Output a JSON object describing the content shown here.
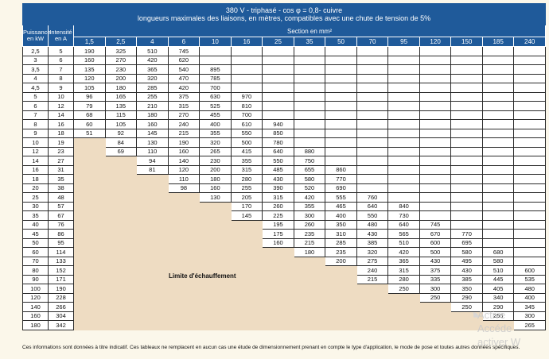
{
  "title_line1": "380 V - triphasé - cos φ  = 0,8- cuivre",
  "title_line2": "longueurs maximales des liaisons, en mètres, compatibles avec une chute de tension de 5%",
  "col_power": "Puissance en kW",
  "col_current": "Intensité en A",
  "col_section": "Section en mm²",
  "sections": [
    "1,5",
    "2,5",
    "4",
    "6",
    "10",
    "16",
    "25",
    "35",
    "50",
    "70",
    "95",
    "120",
    "150",
    "185",
    "240"
  ],
  "rows": [
    {
      "p": "2,5",
      "i": "5",
      "v": [
        "190",
        "325",
        "510",
        "745",
        "",
        "",
        "",
        "",
        "",
        "",
        "",
        "",
        "",
        "",
        ""
      ]
    },
    {
      "p": "3",
      "i": "6",
      "v": [
        "160",
        "270",
        "420",
        "620",
        "",
        "",
        "",
        "",
        "",
        "",
        "",
        "",
        "",
        "",
        ""
      ]
    },
    {
      "p": "3,5",
      "i": "7",
      "v": [
        "135",
        "230",
        "365",
        "540",
        "895",
        "",
        "",
        "",
        "",
        "",
        "",
        "",
        "",
        "",
        ""
      ]
    },
    {
      "p": "4",
      "i": "8",
      "v": [
        "120",
        "200",
        "320",
        "470",
        "785",
        "",
        "",
        "",
        "",
        "",
        "",
        "",
        "",
        "",
        ""
      ]
    },
    {
      "p": "4,5",
      "i": "9",
      "v": [
        "105",
        "180",
        "285",
        "420",
        "700",
        "",
        "",
        "",
        "",
        "",
        "",
        "",
        "",
        "",
        ""
      ]
    },
    {
      "p": "5",
      "i": "10",
      "v": [
        "96",
        "165",
        "255",
        "375",
        "630",
        "970",
        "",
        "",
        "",
        "",
        "",
        "",
        "",
        "",
        ""
      ]
    },
    {
      "p": "6",
      "i": "12",
      "v": [
        "79",
        "135",
        "210",
        "315",
        "525",
        "810",
        "",
        "",
        "",
        "",
        "",
        "",
        "",
        "",
        ""
      ]
    },
    {
      "p": "7",
      "i": "14",
      "v": [
        "68",
        "115",
        "180",
        "270",
        "455",
        "700",
        "",
        "",
        "",
        "",
        "",
        "",
        "",
        "",
        ""
      ]
    },
    {
      "p": "8",
      "i": "16",
      "v": [
        "60",
        "105",
        "160",
        "240",
        "400",
        "610",
        "940",
        "",
        "",
        "",
        "",
        "",
        "",
        "",
        ""
      ]
    },
    {
      "p": "9",
      "i": "18",
      "v": [
        "51",
        "92",
        "145",
        "215",
        "355",
        "550",
        "850",
        "",
        "",
        "",
        "",
        "",
        "",
        "",
        ""
      ]
    },
    {
      "p": "10",
      "i": "19",
      "v": [
        "",
        "84",
        "130",
        "190",
        "320",
        "500",
        "780",
        "",
        "",
        "",
        "",
        "",
        "",
        "",
        ""
      ]
    },
    {
      "p": "12",
      "i": "23",
      "v": [
        "",
        "69",
        "110",
        "160",
        "265",
        "415",
        "640",
        "880",
        "",
        "",
        "",
        "",
        "",
        "",
        ""
      ]
    },
    {
      "p": "14",
      "i": "27",
      "v": [
        "",
        "",
        "94",
        "140",
        "230",
        "355",
        "550",
        "750",
        "",
        "",
        "",
        "",
        "",
        "",
        ""
      ]
    },
    {
      "p": "16",
      "i": "31",
      "v": [
        "",
        "",
        "81",
        "120",
        "200",
        "315",
        "485",
        "655",
        "860",
        "",
        "",
        "",
        "",
        "",
        ""
      ]
    },
    {
      "p": "18",
      "i": "35",
      "v": [
        "",
        "",
        "",
        "110",
        "180",
        "280",
        "430",
        "580",
        "770",
        "",
        "",
        "",
        "",
        "",
        ""
      ]
    },
    {
      "p": "20",
      "i": "38",
      "v": [
        "",
        "",
        "",
        "98",
        "160",
        "255",
        "390",
        "520",
        "690",
        "",
        "",
        "",
        "",
        "",
        ""
      ]
    },
    {
      "p": "25",
      "i": "48",
      "v": [
        "",
        "",
        "",
        "",
        "130",
        "205",
        "315",
        "420",
        "555",
        "760",
        "",
        "",
        "",
        "",
        ""
      ]
    },
    {
      "p": "30",
      "i": "57",
      "v": [
        "",
        "",
        "",
        "",
        "",
        "170",
        "260",
        "355",
        "465",
        "640",
        "840",
        "",
        "",
        "",
        ""
      ]
    },
    {
      "p": "35",
      "i": "67",
      "v": [
        "",
        "",
        "",
        "",
        "",
        "145",
        "225",
        "300",
        "400",
        "550",
        "730",
        "",
        "",
        "",
        ""
      ]
    },
    {
      "p": "40",
      "i": "76",
      "v": [
        "",
        "",
        "",
        "",
        "",
        "",
        "195",
        "260",
        "350",
        "480",
        "640",
        "745",
        "",
        "",
        ""
      ]
    },
    {
      "p": "45",
      "i": "86",
      "v": [
        "",
        "",
        "",
        "",
        "",
        "",
        "175",
        "235",
        "310",
        "430",
        "565",
        "670",
        "770",
        "",
        ""
      ]
    },
    {
      "p": "50",
      "i": "95",
      "v": [
        "",
        "",
        "",
        "",
        "",
        "",
        "160",
        "215",
        "285",
        "385",
        "510",
        "600",
        "695",
        "",
        ""
      ]
    },
    {
      "p": "60",
      "i": "114",
      "v": [
        "",
        "",
        "",
        "",
        "",
        "",
        "",
        "180",
        "235",
        "320",
        "420",
        "500",
        "580",
        "680",
        ""
      ]
    },
    {
      "p": "70",
      "i": "133",
      "v": [
        "",
        "",
        "",
        "",
        "",
        "",
        "",
        "",
        "200",
        "275",
        "365",
        "430",
        "495",
        "580",
        ""
      ]
    },
    {
      "p": "80",
      "i": "152",
      "v": [
        "",
        "",
        "",
        "",
        "",
        "",
        "",
        "",
        "",
        "240",
        "315",
        "375",
        "430",
        "510",
        "600"
      ]
    },
    {
      "p": "90",
      "i": "171",
      "v": [
        "",
        "",
        "",
        "",
        "",
        "",
        "",
        "",
        "",
        "215",
        "280",
        "335",
        "385",
        "445",
        "535"
      ]
    },
    {
      "p": "100",
      "i": "190",
      "v": [
        "",
        "",
        "",
        "",
        "",
        "",
        "",
        "",
        "",
        "",
        "250",
        "300",
        "350",
        "405",
        "480"
      ]
    },
    {
      "p": "120",
      "i": "228",
      "v": [
        "",
        "",
        "",
        "",
        "",
        "",
        "",
        "",
        "",
        "",
        "",
        "250",
        "290",
        "340",
        "400"
      ]
    },
    {
      "p": "140",
      "i": "266",
      "v": [
        "",
        "",
        "",
        "",
        "",
        "",
        "",
        "",
        "",
        "",
        "",
        "",
        "250",
        "290",
        "345"
      ]
    },
    {
      "p": "160",
      "i": "304",
      "v": [
        "",
        "",
        "",
        "",
        "",
        "",
        "",
        "",
        "",
        "",
        "",
        "",
        "",
        "255",
        "300"
      ]
    },
    {
      "p": "180",
      "i": "342",
      "v": [
        "",
        "",
        "",
        "",
        "",
        "",
        "",
        "",
        "",
        "",
        "",
        "",
        "",
        "",
        "265"
      ]
    }
  ],
  "limit_label": "Limite d'échauffement",
  "footnote": "Ces informations sont données à titre indicatif. Ces tableaux ne remplacent en aucun cas une étude de dimensionnement prenant en compte le type d'application, le mode de pose et toutes autres données spécifiques.",
  "watermark_line1": "Active",
  "watermark_line2": "Accéde",
  "watermark_line3": "activer W",
  "colors": {
    "header": "#1f5a9a",
    "limit_zone": "#eedcc2",
    "page": "#fbf7ea"
  }
}
